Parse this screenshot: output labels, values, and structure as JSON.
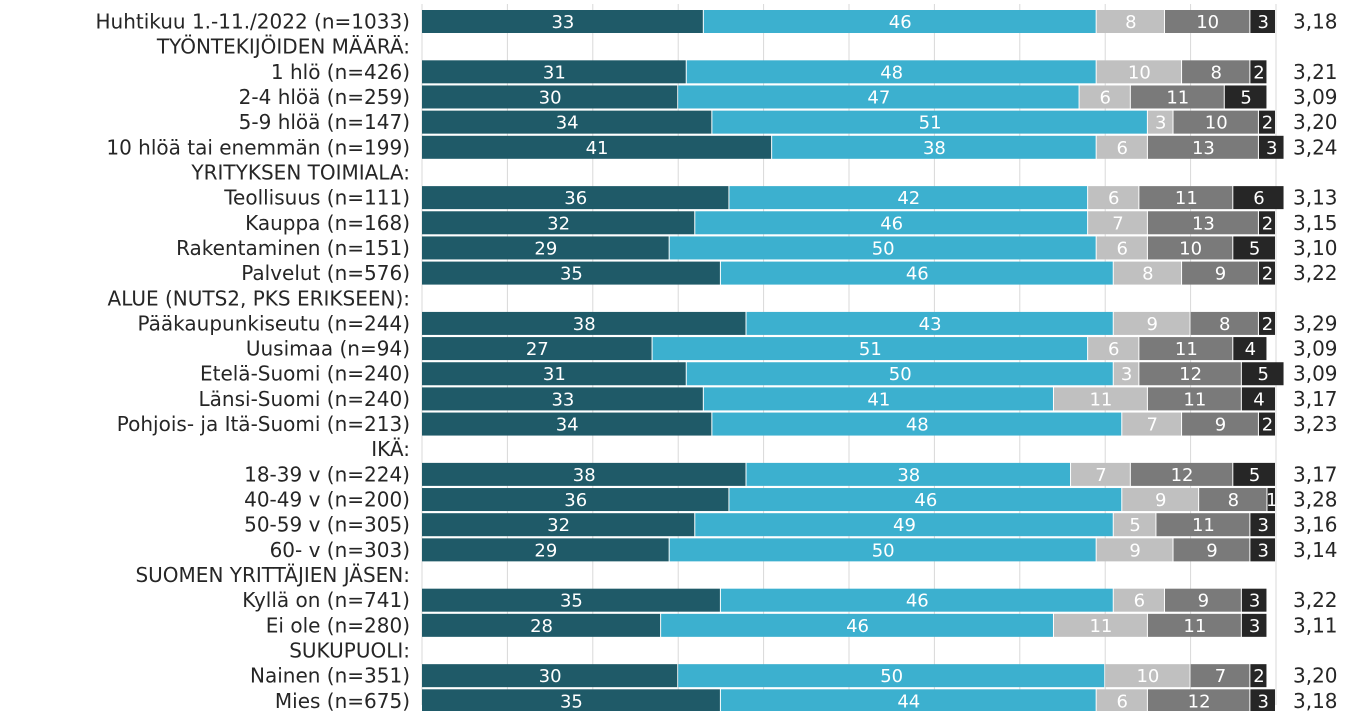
{
  "chart_data": {
    "type": "bar",
    "stacked": true,
    "orientation": "horizontal",
    "title": "",
    "xlabel": "",
    "ylabel": "",
    "xlim": [
      0,
      100
    ],
    "grid": true,
    "legend": "none",
    "segment_colors": [
      "#1f5a68",
      "#3cb0cf",
      "#c0c0c0",
      "#7a7a7a",
      "#262626"
    ],
    "segment_label_colors": [
      "#ffffff",
      "#ffffff",
      "#ffffff",
      "#ffffff",
      "#ffffff"
    ],
    "rows": [
      {
        "label": "Huhtikuu 1.-11./2022 (n=1033)",
        "values": [
          33,
          46,
          8,
          10,
          3
        ],
        "avg": "3,18"
      },
      {
        "label": "TYÖNTEKIJÖIDEN MÄÄRÄ:",
        "header": true
      },
      {
        "label": "1 hlö (n=426)",
        "values": [
          31,
          48,
          10,
          8,
          2
        ],
        "avg": "3,21"
      },
      {
        "label": "2-4 hlöä (n=259)",
        "values": [
          30,
          47,
          6,
          11,
          5
        ],
        "avg": "3,09"
      },
      {
        "label": "5-9 hlöä (n=147)",
        "values": [
          34,
          51,
          3,
          10,
          2
        ],
        "avg": "3,20"
      },
      {
        "label": "10 hlöä tai enemmän (n=199)",
        "values": [
          41,
          38,
          6,
          13,
          3
        ],
        "avg": "3,24"
      },
      {
        "label": "YRITYKSEN TOIMIALA:",
        "header": true
      },
      {
        "label": "Teollisuus (n=111)",
        "values": [
          36,
          42,
          6,
          11,
          6
        ],
        "avg": "3,13"
      },
      {
        "label": "Kauppa (n=168)",
        "values": [
          32,
          46,
          7,
          13,
          2
        ],
        "avg": "3,15"
      },
      {
        "label": "Rakentaminen (n=151)",
        "values": [
          29,
          50,
          6,
          10,
          5
        ],
        "avg": "3,10"
      },
      {
        "label": "Palvelut (n=576)",
        "values": [
          35,
          46,
          8,
          9,
          2
        ],
        "avg": "3,22"
      },
      {
        "label": "ALUE (NUTS2, PKS ERIKSEEN):",
        "header": true
      },
      {
        "label": "Pääkaupunkiseutu (n=244)",
        "values": [
          38,
          43,
          9,
          8,
          2
        ],
        "avg": "3,29"
      },
      {
        "label": "Uusimaa (n=94)",
        "values": [
          27,
          51,
          6,
          11,
          4
        ],
        "avg": "3,09"
      },
      {
        "label": "Etelä-Suomi (n=240)",
        "values": [
          31,
          50,
          3,
          12,
          5
        ],
        "avg": "3,09"
      },
      {
        "label": "Länsi-Suomi (n=240)",
        "values": [
          33,
          41,
          11,
          11,
          4
        ],
        "avg": "3,17"
      },
      {
        "label": "Pohjois- ja Itä-Suomi (n=213)",
        "values": [
          34,
          48,
          7,
          9,
          2
        ],
        "avg": "3,23"
      },
      {
        "label": "IKÄ:",
        "header": true
      },
      {
        "label": "18-39 v (n=224)",
        "values": [
          38,
          38,
          7,
          12,
          5
        ],
        "avg": "3,17"
      },
      {
        "label": "40-49 v (n=200)",
        "values": [
          36,
          46,
          9,
          8,
          1
        ],
        "avg": "3,28"
      },
      {
        "label": "50-59 v (n=305)",
        "values": [
          32,
          49,
          5,
          11,
          3
        ],
        "avg": "3,16"
      },
      {
        "label": "60- v (n=303)",
        "values": [
          29,
          50,
          9,
          9,
          3
        ],
        "avg": "3,14"
      },
      {
        "label": "SUOMEN YRITTÄJIEN JÄSEN:",
        "header": true
      },
      {
        "label": "Kyllä on (n=741)",
        "values": [
          35,
          46,
          6,
          9,
          3
        ],
        "avg": "3,22"
      },
      {
        "label": "Ei ole (n=280)",
        "values": [
          28,
          46,
          11,
          11,
          3
        ],
        "avg": "3,11"
      },
      {
        "label": "SUKUPUOLI:",
        "header": true
      },
      {
        "label": "Nainen (n=351)",
        "values": [
          30,
          50,
          10,
          7,
          2
        ],
        "avg": "3,20"
      },
      {
        "label": "Mies (n=675)",
        "values": [
          35,
          44,
          6,
          12,
          3
        ],
        "avg": "3,18"
      }
    ]
  }
}
